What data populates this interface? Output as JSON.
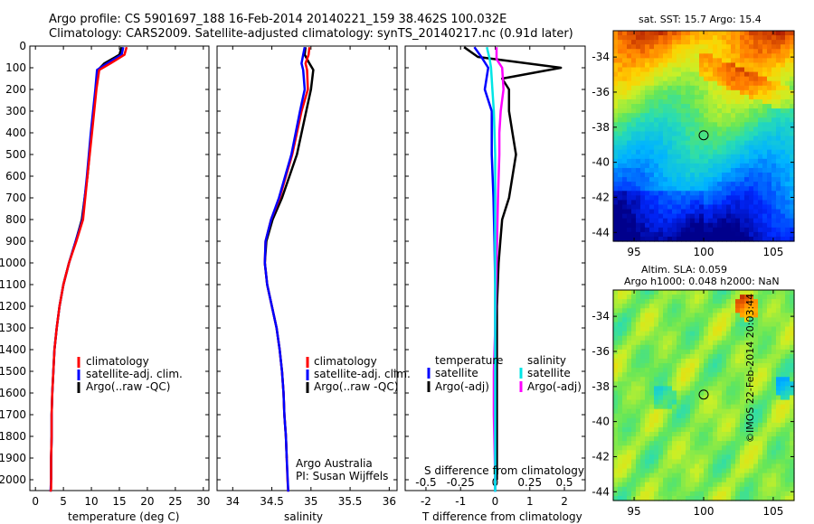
{
  "header": {
    "title_line1": "Argo profile: CS 5901697_188 16-Feb-2014 20140221_159 38.462S 100.032E",
    "title_line2": "Climatology: CARS2009. Satellite-adjusted climatology: synTS_20140217.nc (0.91d later)"
  },
  "colors": {
    "climatology": "#ff0000",
    "satellite": "#0000ff",
    "argo": "#000000",
    "sat_salinity": "#00e5e5",
    "argo_salinity": "#ff00ff"
  },
  "chart_data": [
    {
      "type": "line",
      "id": "temperature",
      "xlabel": "temperature (deg C)",
      "xlim": [
        -1,
        31
      ],
      "xticks": [
        "0",
        "5",
        "10",
        "15",
        "20",
        "25",
        "30"
      ],
      "ylim": [
        0,
        2050
      ],
      "yticks": [
        "0",
        "100",
        "200",
        "300",
        "400",
        "500",
        "600",
        "700",
        "800",
        "900",
        "1000",
        "1100",
        "1200",
        "1300",
        "1400",
        "1500",
        "1600",
        "1700",
        "1800",
        "1900",
        "2000"
      ],
      "legend": [
        "climatology",
        "satellite-adj. clim.",
        "Argo(..raw -QC)"
      ],
      "series": [
        {
          "name": "climatology",
          "x": [
            16.3,
            15.9,
            13.4,
            11.4,
            10.9,
            10.1,
            9.3,
            8.5,
            7.3,
            6.0,
            5.0,
            4.3,
            3.8,
            3.4,
            3.2,
            3.0,
            2.9,
            2.9,
            2.8,
            2.8,
            2.8,
            2.7
          ],
          "y": [
            5,
            40,
            80,
            110,
            200,
            400,
            600,
            800,
            900,
            1000,
            1100,
            1200,
            1300,
            1400,
            1500,
            1600,
            1700,
            1800,
            1900,
            2000,
            2040,
            2055
          ]
        },
        {
          "name": "satellite-adj. clim.",
          "x": [
            15.7,
            15.4,
            12.8,
            11.0,
            10.7,
            9.9,
            9.2,
            8.4,
            7.2,
            6.0,
            5.0,
            4.3,
            3.8,
            3.4,
            3.2,
            3.0,
            2.9,
            2.9,
            2.8,
            2.8,
            2.7
          ],
          "y": [
            5,
            40,
            80,
            110,
            200,
            400,
            600,
            800,
            900,
            1000,
            1100,
            1200,
            1300,
            1400,
            1500,
            1600,
            1700,
            1800,
            1900,
            2000,
            2055
          ]
        },
        {
          "name": "Argo(..raw -QC)",
          "x": [
            15.4,
            15.0,
            12.3,
            11.2,
            10.8,
            10.0,
            9.3,
            8.3,
            7.2,
            6.0,
            5.0,
            4.3,
            3.8,
            3.4,
            3.2,
            3.0,
            2.9,
            2.9,
            2.8,
            2.8
          ],
          "y": [
            5,
            40,
            80,
            110,
            200,
            400,
            600,
            800,
            900,
            1000,
            1100,
            1200,
            1300,
            1400,
            1500,
            1600,
            1700,
            1800,
            1900,
            2000
          ]
        }
      ]
    },
    {
      "type": "line",
      "id": "salinity",
      "xlabel": "salinity",
      "xlim": [
        33.8,
        36.1
      ],
      "xticks": [
        "34",
        "34.5",
        "35",
        "35.5",
        "36"
      ],
      "ylim": [
        0,
        2050
      ],
      "legend": [
        "climatology",
        "satellite-adj. clim.",
        "Argo(..raw -QC)"
      ],
      "annotation_line1": "Argo Australia",
      "annotation_line2": "PI: Susan Wijffels",
      "series": [
        {
          "name": "climatology",
          "x": [
            34.98,
            34.97,
            34.93,
            34.95,
            34.96,
            34.88,
            34.76,
            34.6,
            34.49,
            34.42,
            34.41,
            34.44,
            34.5,
            34.56,
            34.6,
            34.63,
            34.65,
            34.66,
            34.68,
            34.69,
            34.7,
            34.71
          ],
          "y": [
            5,
            40,
            80,
            110,
            200,
            300,
            500,
            700,
            800,
            900,
            1000,
            1100,
            1200,
            1300,
            1400,
            1500,
            1600,
            1700,
            1800,
            1900,
            2000,
            2055
          ]
        },
        {
          "name": "satellite-adj. clim.",
          "x": [
            34.92,
            34.9,
            34.88,
            34.9,
            34.92,
            34.86,
            34.75,
            34.59,
            34.49,
            34.42,
            34.41,
            34.44,
            34.5,
            34.56,
            34.6,
            34.63,
            34.65,
            34.66,
            34.68,
            34.69,
            34.71
          ],
          "y": [
            5,
            40,
            80,
            110,
            200,
            300,
            500,
            700,
            800,
            900,
            1000,
            1100,
            1200,
            1300,
            1400,
            1500,
            1600,
            1700,
            1800,
            1900,
            2055
          ]
        },
        {
          "name": "Argo(..raw -QC)",
          "x": [
            34.93,
            34.92,
            34.98,
            35.03,
            35.0,
            34.94,
            34.82,
            34.63,
            34.51,
            34.43,
            34.41,
            34.44,
            34.5,
            34.56,
            34.6,
            34.63,
            34.65,
            34.66,
            34.68,
            34.69
          ],
          "y": [
            5,
            40,
            80,
            110,
            200,
            300,
            500,
            700,
            800,
            900,
            1000,
            1100,
            1200,
            1300,
            1400,
            1500,
            1600,
            1700,
            1800,
            1900
          ]
        }
      ]
    },
    {
      "type": "line",
      "id": "differences",
      "xlabel": "T difference from climatology",
      "xlabel_top": "S difference from climatology",
      "xlim": [
        -2.6,
        2.6
      ],
      "xticks": [
        "-2",
        "-1",
        "0",
        "1",
        "2"
      ],
      "xticks_top": [
        "-0.5",
        "-0.25",
        "0",
        "0.25",
        "0.5"
      ],
      "ylim": [
        0,
        2050
      ],
      "legend_temperature_title": "temperature",
      "legend_salinity_title": "salinity",
      "legend": [
        "satellite",
        "Argo(-adj)",
        "satellite",
        "Argo(-adj)"
      ],
      "series": [
        {
          "name": "T satellite",
          "x": [
            -0.6,
            -0.4,
            -0.2,
            -0.3,
            -0.1,
            -0.1,
            -0.05,
            -0.02,
            0,
            0,
            0,
            0
          ],
          "y": [
            5,
            50,
            100,
            200,
            300,
            500,
            700,
            900,
            1100,
            1400,
            1700,
            2055
          ]
        },
        {
          "name": "T Argo(-adj)",
          "x": [
            -0.9,
            -0.5,
            1.9,
            0.2,
            0.4,
            0.4,
            0.5,
            0.6,
            0.4,
            0.2,
            0.15,
            0.1,
            0.05,
            0.05,
            0.05,
            0.05
          ],
          "y": [
            5,
            50,
            100,
            150,
            200,
            300,
            400,
            500,
            700,
            800,
            900,
            1000,
            1200,
            1400,
            1700,
            2000
          ]
        },
        {
          "name": "S satellite",
          "x": [
            -0.06,
            -0.04,
            -0.03,
            -0.02,
            -0.01,
            0,
            0,
            0,
            0,
            0
          ],
          "y": [
            5,
            60,
            100,
            200,
            300,
            500,
            700,
            1000,
            1500,
            2055
          ]
        },
        {
          "name": "S Argo(-adj)",
          "x": [
            0.01,
            0.01,
            0.05,
            0.06,
            0.04,
            0.03,
            0.03,
            0.02,
            0.01,
            0,
            -0.01,
            -0.01,
            0
          ],
          "y": [
            5,
            60,
            100,
            200,
            300,
            400,
            500,
            700,
            1000,
            1300,
            1500,
            1700,
            2000
          ]
        }
      ]
    },
    {
      "type": "heatmap",
      "id": "sst_map",
      "title": "sat. SST: 15.7 Argo: 15.4",
      "xticks": [
        "95",
        "100",
        "105"
      ],
      "yticks": [
        "-34",
        "-36",
        "-38",
        "-40",
        "-42",
        "-44"
      ],
      "xlim": [
        93.5,
        106.5
      ],
      "ylim": [
        -44.5,
        -32.5
      ],
      "marker": {
        "lon": 100.0,
        "lat": -38.46
      }
    },
    {
      "type": "heatmap",
      "id": "sla_map",
      "title_line1": "Altim. SLA: 0.059",
      "title_line2": "Argo h1000: 0.048 h2000: NaN",
      "xticks": [
        "95",
        "100",
        "105"
      ],
      "yticks": [
        "-34",
        "-36",
        "-38",
        "-40",
        "-42",
        "-44"
      ],
      "xlim": [
        93.5,
        106.5
      ],
      "ylim": [
        -44.5,
        -32.5
      ],
      "marker": {
        "lon": 100.0,
        "lat": -38.46
      }
    }
  ],
  "footer": {
    "credit": "©IMOS 22-Feb-2014 20:03:44"
  }
}
